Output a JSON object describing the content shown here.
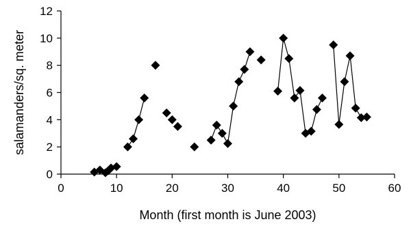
{
  "chart_data": {
    "type": "scatter",
    "title": "",
    "xlabel": "Month (first month is June 2003)",
    "ylabel": "salamanders/sq. meter",
    "xlim": [
      0,
      60
    ],
    "ylim": [
      0,
      12
    ],
    "xticks": [
      0,
      10,
      20,
      30,
      40,
      50,
      60
    ],
    "yticks": [
      0,
      2,
      4,
      6,
      8,
      10,
      12
    ],
    "grid": false,
    "legend": "none",
    "marker": "diamond",
    "marker_color": "#000000",
    "points": [
      {
        "x": 6,
        "y": 0.15
      },
      {
        "x": 7,
        "y": 0.3
      },
      {
        "x": 8,
        "y": 0.1
      },
      {
        "x": 8.5,
        "y": 0.25
      },
      {
        "x": 9,
        "y": 0.45
      },
      {
        "x": 10,
        "y": 0.55
      },
      {
        "x": 12,
        "y": 2.0
      },
      {
        "x": 13,
        "y": 2.6
      },
      {
        "x": 14,
        "y": 4.0
      },
      {
        "x": 15,
        "y": 5.6
      },
      {
        "x": 17,
        "y": 8.0
      },
      {
        "x": 19,
        "y": 4.5
      },
      {
        "x": 20,
        "y": 4.0
      },
      {
        "x": 21,
        "y": 3.5
      },
      {
        "x": 24,
        "y": 2.0
      },
      {
        "x": 27,
        "y": 2.5
      },
      {
        "x": 28,
        "y": 3.6
      },
      {
        "x": 29,
        "y": 3.0
      },
      {
        "x": 30,
        "y": 2.25
      },
      {
        "x": 31,
        "y": 5.0
      },
      {
        "x": 32,
        "y": 6.8
      },
      {
        "x": 33,
        "y": 7.7
      },
      {
        "x": 34,
        "y": 9.0
      },
      {
        "x": 36,
        "y": 8.4
      },
      {
        "x": 39,
        "y": 6.1
      },
      {
        "x": 40,
        "y": 10.0
      },
      {
        "x": 41,
        "y": 8.5
      },
      {
        "x": 42,
        "y": 5.6
      },
      {
        "x": 43,
        "y": 6.15
      },
      {
        "x": 44,
        "y": 3.0
      },
      {
        "x": 45,
        "y": 3.15
      },
      {
        "x": 46,
        "y": 4.75
      },
      {
        "x": 47,
        "y": 5.6
      },
      {
        "x": 49,
        "y": 9.5
      },
      {
        "x": 50,
        "y": 3.65
      },
      {
        "x": 51,
        "y": 6.8
      },
      {
        "x": 52,
        "y": 8.7
      },
      {
        "x": 53,
        "y": 4.85
      },
      {
        "x": 54,
        "y": 4.15
      },
      {
        "x": 55,
        "y": 4.2
      }
    ],
    "line_segments": [
      [
        [
          6,
          0.15
        ],
        [
          7,
          0.3
        ],
        [
          8,
          0.1
        ],
        [
          8.5,
          0.25
        ],
        [
          9,
          0.45
        ],
        [
          10,
          0.55
        ]
      ],
      [
        [
          12,
          2.0
        ],
        [
          13,
          2.6
        ],
        [
          14,
          4.0
        ],
        [
          15,
          5.6
        ]
      ],
      [
        [
          27,
          2.5
        ],
        [
          28,
          3.6
        ],
        [
          29,
          3.0
        ],
        [
          30,
          2.25
        ],
        [
          31,
          5.0
        ],
        [
          32,
          6.8
        ],
        [
          33,
          7.7
        ],
        [
          34,
          9.0
        ]
      ],
      [
        [
          39,
          6.1
        ],
        [
          40,
          10.0
        ],
        [
          41,
          8.5
        ],
        [
          42,
          5.6
        ],
        [
          43,
          6.15
        ],
        [
          44,
          3.0
        ],
        [
          45,
          3.15
        ],
        [
          46,
          4.75
        ],
        [
          47,
          5.6
        ]
      ],
      [
        [
          49,
          9.5
        ],
        [
          50,
          3.65
        ],
        [
          51,
          6.8
        ],
        [
          52,
          8.7
        ],
        [
          53,
          4.85
        ],
        [
          54,
          4.15
        ],
        [
          55,
          4.2
        ]
      ]
    ]
  }
}
